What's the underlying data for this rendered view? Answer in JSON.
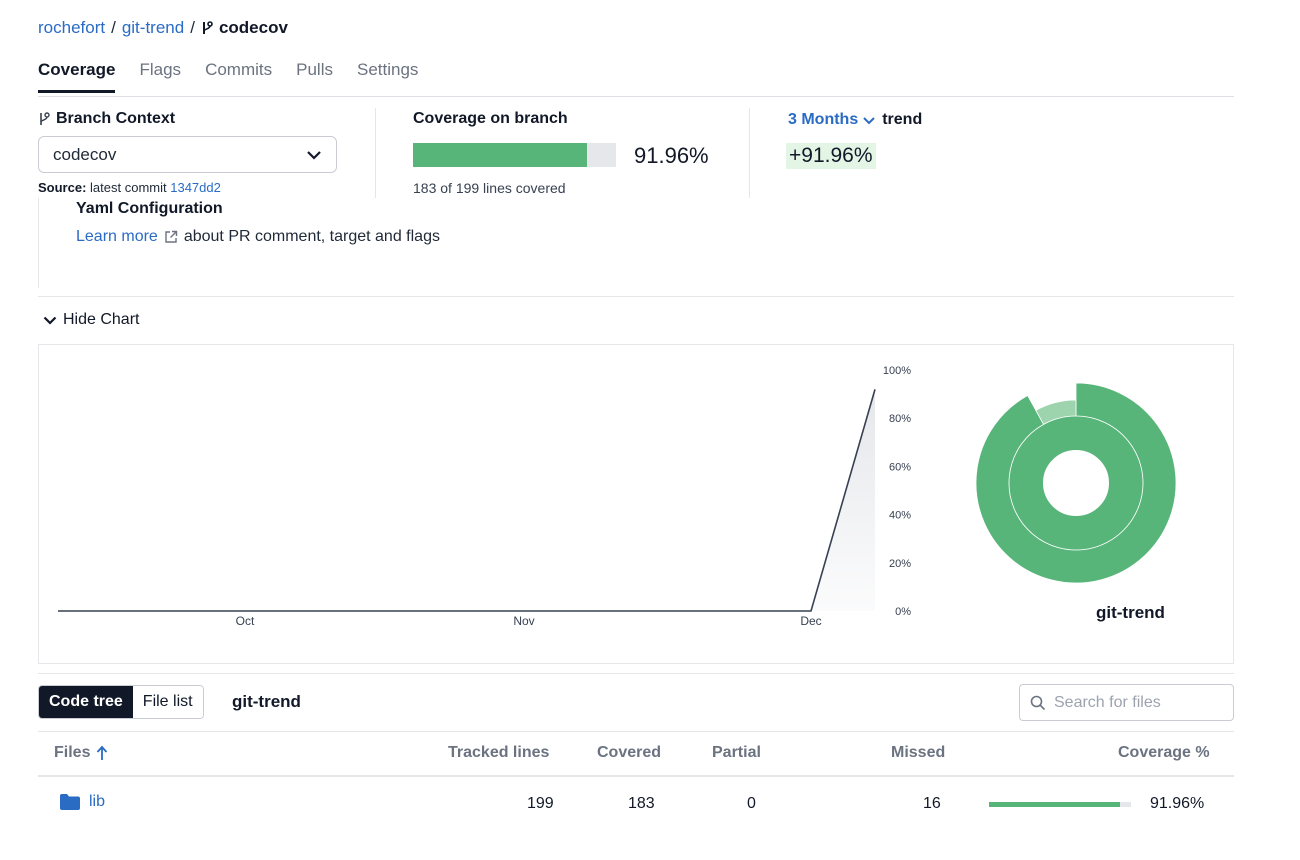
{
  "breadcrumb": {
    "owner": "rochefort",
    "repo": "git-trend",
    "branch": "codecov"
  },
  "tabs": [
    {
      "label": "Coverage",
      "active": true
    },
    {
      "label": "Flags"
    },
    {
      "label": "Commits"
    },
    {
      "label": "Pulls"
    },
    {
      "label": "Settings"
    }
  ],
  "summary": {
    "branch_context_label": "Branch Context",
    "branch_selected": "codecov",
    "source_label": "Source:",
    "source_text": "latest commit",
    "source_commit": "1347dd2",
    "coverage_label": "Coverage on branch",
    "coverage_percent": "91.96%",
    "coverage_fraction": 0.9196,
    "coverage_lines": "183 of 199 lines covered",
    "trend_period": "3 Months",
    "trend_word": "trend",
    "trend_value": "+91.96%"
  },
  "yaml": {
    "title": "Yaml Configuration",
    "learn_more": "Learn more",
    "description": "about PR comment, target and flags"
  },
  "chart_toggle": {
    "label": "Hide Chart"
  },
  "chart_data": [
    {
      "type": "area",
      "x": [
        "Oct",
        "Nov",
        "Dec",
        "end"
      ],
      "xticks": [
        "Oct",
        "Nov",
        "Dec"
      ],
      "points": [
        {
          "x": "start",
          "y": 0
        },
        {
          "x": "Dec",
          "y": 0
        },
        {
          "x": "end",
          "y": 91.96
        }
      ],
      "yticks": [
        "0%",
        "20%",
        "40%",
        "60%",
        "80%",
        "100%"
      ],
      "ylim": [
        0,
        100
      ],
      "grid": false,
      "colors": {
        "line": "#374151",
        "fill": "#e5e7eb"
      }
    },
    {
      "type": "pie",
      "label": "git-trend",
      "slices": [
        {
          "name": "covered",
          "value": 91.96,
          "color": "#58b57a"
        },
        {
          "name": "missed",
          "value": 8.04,
          "color": "#9dd4ae"
        }
      ]
    }
  ],
  "file_view": {
    "toggle": [
      "Code tree",
      "File list"
    ],
    "active": "Code tree",
    "repo": "git-trend",
    "search_placeholder": "Search for files"
  },
  "table": {
    "headers": {
      "files": "Files",
      "tracked": "Tracked lines",
      "covered": "Covered",
      "partial": "Partial",
      "missed": "Missed",
      "coverage": "Coverage %"
    },
    "rows": [
      {
        "name": "lib",
        "tracked": "199",
        "covered": "183",
        "partial": "0",
        "missed": "16",
        "coverage": "91.96%",
        "coverage_fraction": 0.9196
      }
    ]
  },
  "colors": {
    "accent": "#2a6bc4",
    "covered": "#58b57a",
    "dark": "#111827"
  }
}
